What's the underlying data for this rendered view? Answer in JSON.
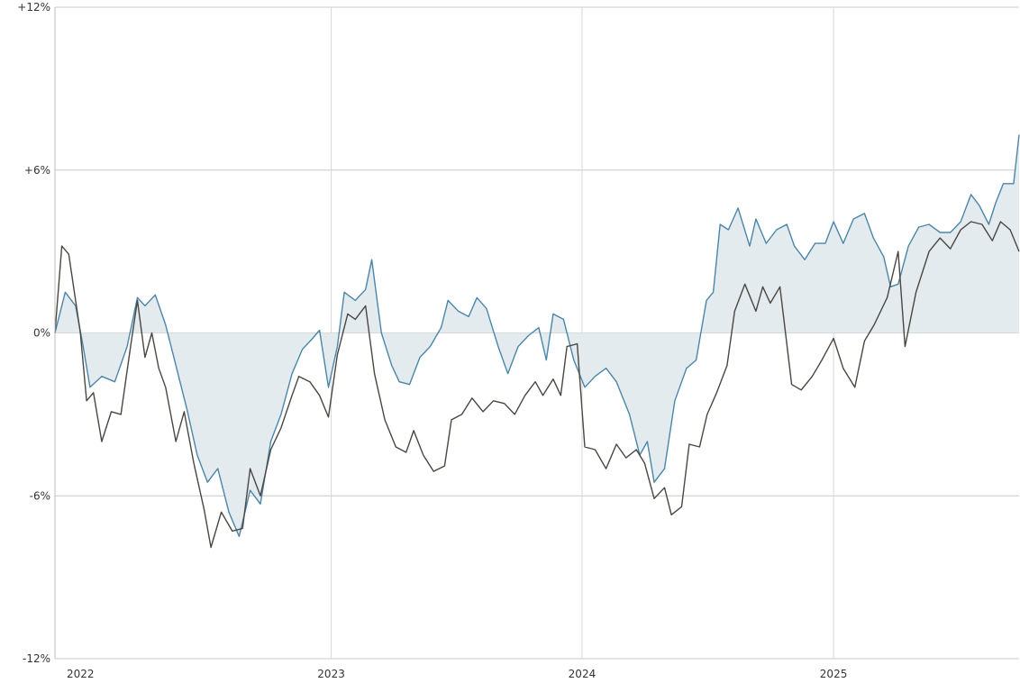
{
  "chart_data": {
    "type": "line",
    "title": "",
    "xlabel": "",
    "ylabel": "",
    "ylim": [
      -12,
      12
    ],
    "xlim": [
      "2021-11-25",
      "2025-09-28"
    ],
    "y_ticks": [
      {
        "value": 12,
        "label": "+12%"
      },
      {
        "value": 6,
        "label": "+6%"
      },
      {
        "value": 0,
        "label": "0%"
      },
      {
        "value": -6,
        "label": "-6%"
      },
      {
        "value": -12,
        "label": "-12%"
      }
    ],
    "x_ticks": [
      {
        "value": "2022-01-01",
        "label": "2022",
        "gridline": false
      },
      {
        "value": "2023-01-01",
        "label": "2023",
        "gridline": true
      },
      {
        "value": "2024-01-01",
        "label": "2024",
        "gridline": true
      },
      {
        "value": "2025-01-01",
        "label": "2025",
        "gridline": true
      }
    ],
    "grid": true,
    "fill_between": "upper-series-and-zero",
    "series": [
      {
        "name": "",
        "color": "#4a86a8",
        "fill": "#e4ebef",
        "points": [
          [
            "2021-11-25",
            0.0
          ],
          [
            "2021-12-10",
            1.5
          ],
          [
            "2021-12-25",
            1.0
          ],
          [
            "2022-01-05",
            -0.5
          ],
          [
            "2022-01-15",
            -2.0
          ],
          [
            "2022-02-01",
            -1.6
          ],
          [
            "2022-02-20",
            -1.8
          ],
          [
            "2022-03-10",
            -0.5
          ],
          [
            "2022-03-25",
            1.3
          ],
          [
            "2022-04-05",
            1.0
          ],
          [
            "2022-04-20",
            1.4
          ],
          [
            "2022-05-05",
            0.3
          ],
          [
            "2022-05-20",
            -1.2
          ],
          [
            "2022-06-05",
            -2.8
          ],
          [
            "2022-06-20",
            -4.5
          ],
          [
            "2022-07-05",
            -5.5
          ],
          [
            "2022-07-20",
            -5.0
          ],
          [
            "2022-08-05",
            -6.6
          ],
          [
            "2022-08-20",
            -7.5
          ],
          [
            "2022-09-05",
            -5.8
          ],
          [
            "2022-09-20",
            -6.3
          ],
          [
            "2022-10-05",
            -4.0
          ],
          [
            "2022-10-20",
            -3.0
          ],
          [
            "2022-11-05",
            -1.5
          ],
          [
            "2022-11-20",
            -0.6
          ],
          [
            "2022-12-05",
            -0.2
          ],
          [
            "2022-12-15",
            0.1
          ],
          [
            "2022-12-28",
            -2.0
          ],
          [
            "2023-01-10",
            -0.5
          ],
          [
            "2023-01-20",
            1.5
          ],
          [
            "2023-02-05",
            1.2
          ],
          [
            "2023-02-20",
            1.6
          ],
          [
            "2023-03-01",
            2.7
          ],
          [
            "2023-03-15",
            0.0
          ],
          [
            "2023-03-30",
            -1.2
          ],
          [
            "2023-04-10",
            -1.8
          ],
          [
            "2023-04-25",
            -1.9
          ],
          [
            "2023-05-10",
            -0.9
          ],
          [
            "2023-05-25",
            -0.5
          ],
          [
            "2023-06-10",
            0.2
          ],
          [
            "2023-06-20",
            1.2
          ],
          [
            "2023-07-05",
            0.8
          ],
          [
            "2023-07-20",
            0.6
          ],
          [
            "2023-08-01",
            1.3
          ],
          [
            "2023-08-15",
            0.9
          ],
          [
            "2023-09-01",
            -0.5
          ],
          [
            "2023-09-15",
            -1.5
          ],
          [
            "2023-09-30",
            -0.5
          ],
          [
            "2023-10-15",
            -0.1
          ],
          [
            "2023-10-30",
            0.2
          ],
          [
            "2023-11-10",
            -1.0
          ],
          [
            "2023-11-20",
            0.7
          ],
          [
            "2023-12-05",
            0.5
          ],
          [
            "2023-12-20",
            -1.0
          ],
          [
            "2024-01-05",
            -2.0
          ],
          [
            "2024-01-20",
            -1.6
          ],
          [
            "2024-02-05",
            -1.3
          ],
          [
            "2024-02-20",
            -1.8
          ],
          [
            "2024-03-10",
            -3.0
          ],
          [
            "2024-03-25",
            -4.5
          ],
          [
            "2024-04-05",
            -4.0
          ],
          [
            "2024-04-15",
            -5.5
          ],
          [
            "2024-04-30",
            -5.0
          ],
          [
            "2024-05-15",
            -2.5
          ],
          [
            "2024-06-01",
            -1.3
          ],
          [
            "2024-06-15",
            -1.0
          ],
          [
            "2024-06-30",
            1.2
          ],
          [
            "2024-07-10",
            1.5
          ],
          [
            "2024-07-20",
            4.0
          ],
          [
            "2024-08-01",
            3.8
          ],
          [
            "2024-08-15",
            4.6
          ],
          [
            "2024-09-01",
            3.2
          ],
          [
            "2024-09-10",
            4.2
          ],
          [
            "2024-09-25",
            3.3
          ],
          [
            "2024-10-10",
            3.8
          ],
          [
            "2024-10-25",
            4.0
          ],
          [
            "2024-11-05",
            3.2
          ],
          [
            "2024-11-20",
            2.7
          ],
          [
            "2024-12-05",
            3.3
          ],
          [
            "2024-12-20",
            3.3
          ],
          [
            "2025-01-01",
            4.1
          ],
          [
            "2025-01-15",
            3.3
          ],
          [
            "2025-01-30",
            4.2
          ],
          [
            "2025-02-15",
            4.4
          ],
          [
            "2025-02-28",
            3.5
          ],
          [
            "2025-03-15",
            2.8
          ],
          [
            "2025-03-25",
            1.7
          ],
          [
            "2025-04-05",
            1.8
          ],
          [
            "2025-04-20",
            3.2
          ],
          [
            "2025-05-05",
            3.9
          ],
          [
            "2025-05-20",
            4.0
          ],
          [
            "2025-06-05",
            3.7
          ],
          [
            "2025-06-20",
            3.7
          ],
          [
            "2025-07-05",
            4.1
          ],
          [
            "2025-07-20",
            5.1
          ],
          [
            "2025-08-01",
            4.7
          ],
          [
            "2025-08-15",
            4.0
          ],
          [
            "2025-08-25",
            4.8
          ],
          [
            "2025-09-05",
            5.5
          ],
          [
            "2025-09-15",
            5.5
          ],
          [
            "2025-09-20",
            5.5
          ],
          [
            "2025-09-28",
            7.3
          ]
        ]
      },
      {
        "name": "",
        "color": "#4a4642",
        "fill": "none",
        "points": [
          [
            "2021-11-25",
            0.0
          ],
          [
            "2021-12-05",
            3.2
          ],
          [
            "2021-12-15",
            2.9
          ],
          [
            "2022-01-01",
            0.0
          ],
          [
            "2022-01-10",
            -2.5
          ],
          [
            "2022-01-20",
            -2.2
          ],
          [
            "2022-02-01",
            -4.0
          ],
          [
            "2022-02-15",
            -2.9
          ],
          [
            "2022-03-01",
            -3.0
          ],
          [
            "2022-03-15",
            -0.5
          ],
          [
            "2022-03-25",
            1.2
          ],
          [
            "2022-04-05",
            -0.9
          ],
          [
            "2022-04-15",
            0.0
          ],
          [
            "2022-04-25",
            -1.3
          ],
          [
            "2022-05-05",
            -2.0
          ],
          [
            "2022-05-20",
            -4.0
          ],
          [
            "2022-06-01",
            -2.9
          ],
          [
            "2022-06-15",
            -4.8
          ],
          [
            "2022-06-30",
            -6.5
          ],
          [
            "2022-07-10",
            -7.9
          ],
          [
            "2022-07-25",
            -6.6
          ],
          [
            "2022-08-10",
            -7.3
          ],
          [
            "2022-08-25",
            -7.2
          ],
          [
            "2022-09-05",
            -5.0
          ],
          [
            "2022-09-20",
            -6.0
          ],
          [
            "2022-10-05",
            -4.3
          ],
          [
            "2022-10-20",
            -3.5
          ],
          [
            "2022-11-05",
            -2.3
          ],
          [
            "2022-11-15",
            -1.6
          ],
          [
            "2022-12-01",
            -1.8
          ],
          [
            "2022-12-15",
            -2.3
          ],
          [
            "2022-12-28",
            -3.1
          ],
          [
            "2023-01-10",
            -0.8
          ],
          [
            "2023-01-25",
            0.7
          ],
          [
            "2023-02-05",
            0.5
          ],
          [
            "2023-02-20",
            1.0
          ],
          [
            "2023-03-05",
            -1.5
          ],
          [
            "2023-03-20",
            -3.2
          ],
          [
            "2023-04-05",
            -4.2
          ],
          [
            "2023-04-20",
            -4.4
          ],
          [
            "2023-05-01",
            -3.6
          ],
          [
            "2023-05-15",
            -4.5
          ],
          [
            "2023-05-30",
            -5.1
          ],
          [
            "2023-06-15",
            -4.9
          ],
          [
            "2023-06-25",
            -3.2
          ],
          [
            "2023-07-10",
            -3.0
          ],
          [
            "2023-07-25",
            -2.4
          ],
          [
            "2023-08-10",
            -2.9
          ],
          [
            "2023-08-25",
            -2.5
          ],
          [
            "2023-09-10",
            -2.6
          ],
          [
            "2023-09-25",
            -3.0
          ],
          [
            "2023-10-10",
            -2.3
          ],
          [
            "2023-10-25",
            -1.8
          ],
          [
            "2023-11-05",
            -2.3
          ],
          [
            "2023-11-20",
            -1.7
          ],
          [
            "2023-12-01",
            -2.3
          ],
          [
            "2023-12-10",
            -0.5
          ],
          [
            "2023-12-25",
            -0.4
          ],
          [
            "2024-01-05",
            -4.2
          ],
          [
            "2024-01-20",
            -4.3
          ],
          [
            "2024-02-05",
            -5.0
          ],
          [
            "2024-02-20",
            -4.1
          ],
          [
            "2024-03-05",
            -4.6
          ],
          [
            "2024-03-20",
            -4.3
          ],
          [
            "2024-04-01",
            -4.8
          ],
          [
            "2024-04-15",
            -6.1
          ],
          [
            "2024-04-30",
            -5.7
          ],
          [
            "2024-05-10",
            -6.7
          ],
          [
            "2024-05-25",
            -6.4
          ],
          [
            "2024-06-05",
            -4.1
          ],
          [
            "2024-06-20",
            -4.2
          ],
          [
            "2024-07-01",
            -3.0
          ],
          [
            "2024-07-15",
            -2.2
          ],
          [
            "2024-07-30",
            -1.2
          ],
          [
            "2024-08-10",
            0.8
          ],
          [
            "2024-08-25",
            1.8
          ],
          [
            "2024-09-10",
            0.8
          ],
          [
            "2024-09-20",
            1.7
          ],
          [
            "2024-10-01",
            1.1
          ],
          [
            "2024-10-15",
            1.7
          ],
          [
            "2024-11-01",
            -1.9
          ],
          [
            "2024-11-15",
            -2.1
          ],
          [
            "2024-12-01",
            -1.6
          ],
          [
            "2024-12-15",
            -1.0
          ],
          [
            "2025-01-01",
            -0.2
          ],
          [
            "2025-01-15",
            -1.3
          ],
          [
            "2025-02-01",
            -2.0
          ],
          [
            "2025-02-15",
            -0.3
          ],
          [
            "2025-03-01",
            0.3
          ],
          [
            "2025-03-20",
            1.3
          ],
          [
            "2025-04-05",
            3.0
          ],
          [
            "2025-04-15",
            -0.5
          ],
          [
            "2025-05-01",
            1.5
          ],
          [
            "2025-05-20",
            3.0
          ],
          [
            "2025-06-05",
            3.5
          ],
          [
            "2025-06-20",
            3.1
          ],
          [
            "2025-07-05",
            3.8
          ],
          [
            "2025-07-20",
            4.1
          ],
          [
            "2025-08-05",
            4.0
          ],
          [
            "2025-08-20",
            3.4
          ],
          [
            "2025-09-01",
            4.1
          ],
          [
            "2025-09-15",
            3.8
          ],
          [
            "2025-09-28",
            3.0
          ]
        ]
      }
    ]
  }
}
